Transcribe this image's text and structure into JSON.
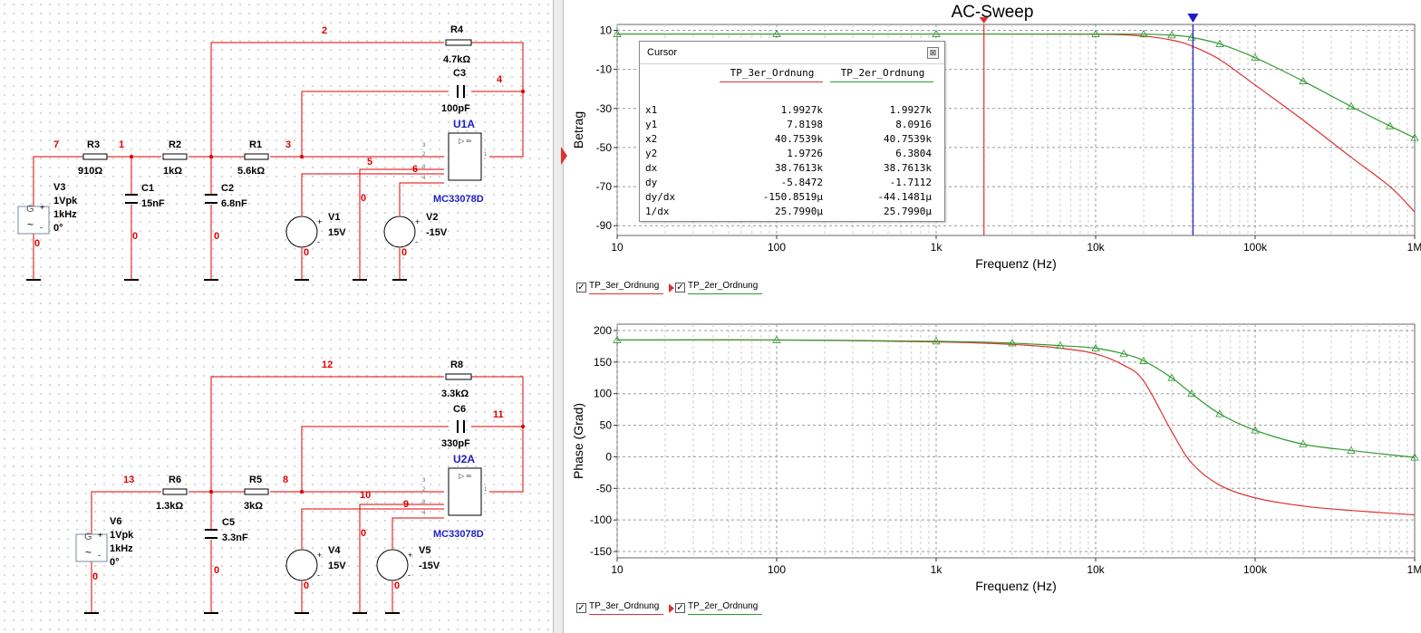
{
  "colors": {
    "red": "#e03030",
    "green": "#2e9a2e",
    "blue": "#1c1cc8",
    "wire": "#e00000",
    "part": "#000000"
  },
  "schematic": {
    "top": {
      "nodes": [
        "7",
        "1",
        "2",
        "3",
        "4",
        "5",
        "6",
        "0",
        "0",
        "0",
        "0",
        "0",
        "0"
      ],
      "R4": {
        "name": "R4",
        "value": "4.7kΩ"
      },
      "C3": {
        "name": "C3",
        "value": "100pF"
      },
      "R3": {
        "name": "R3",
        "value": "910Ω"
      },
      "R2": {
        "name": "R2",
        "value": "1kΩ"
      },
      "R1": {
        "name": "R1",
        "value": "5.6kΩ"
      },
      "C1": {
        "name": "C1",
        "value": "15nF"
      },
      "C2": {
        "name": "C2",
        "value": "6.8nF"
      },
      "V3": {
        "name": "V3",
        "amp": "1Vpk",
        "freq": "1kHz",
        "phase": "0°"
      },
      "V1": {
        "name": "V1",
        "value": "15V"
      },
      "V2": {
        "name": "V2",
        "value": "-15V"
      },
      "U": {
        "name": "U1A",
        "part": "MC33078D"
      }
    },
    "bottom": {
      "nodes": [
        "13",
        "12",
        "8",
        "11",
        "10",
        "9",
        "0",
        "0",
        "0",
        "0",
        "0"
      ],
      "R8": {
        "name": "R8",
        "value": "3.3kΩ"
      },
      "C6": {
        "name": "C6",
        "value": "330pF"
      },
      "R6": {
        "name": "R6",
        "value": "1.3kΩ"
      },
      "R5": {
        "name": "R5",
        "value": "3kΩ"
      },
      "C5": {
        "name": "C5",
        "value": "3.3nF"
      },
      "V6": {
        "name": "V6",
        "amp": "1Vpk",
        "freq": "1kHz",
        "phase": "0°"
      },
      "V4": {
        "name": "V4",
        "value": "15V"
      },
      "V5": {
        "name": "V5",
        "value": "-15V"
      },
      "U": {
        "name": "U2A",
        "part": "MC33078D"
      }
    }
  },
  "grapher": {
    "title": "AC-Sweep",
    "cursor_window": {
      "title": "Cursor",
      "close": "⊠",
      "headers": [
        "TP_3er_Ordnung",
        "TP_2er_Ordnung"
      ],
      "rows": [
        {
          "label": "x1",
          "c1": "1.9927k",
          "c2": "1.9927k"
        },
        {
          "label": "y1",
          "c1": "7.8198",
          "c2": "8.0916"
        },
        {
          "label": "x2",
          "c1": "40.7539k",
          "c2": "40.7539k"
        },
        {
          "label": "y2",
          "c1": "1.9726",
          "c2": "6.3804"
        },
        {
          "label": "dx",
          "c1": "38.7613k",
          "c2": "38.7613k"
        },
        {
          "label": "dy",
          "c1": "-5.8472",
          "c2": "-1.7112"
        },
        {
          "label": "dy/dx",
          "c1": "-150.8519µ",
          "c2": "-44.1481µ"
        },
        {
          "label": "1/dx",
          "c1": "25.7990µ",
          "c2": "25.7990µ"
        }
      ]
    },
    "legend": {
      "series1": "TP_3er_Ordnung",
      "series2": "TP_2er_Ordnung",
      "check": "✓"
    }
  },
  "chart_data": [
    {
      "type": "line",
      "title": "AC-Sweep",
      "xlabel": "Frequenz (Hz)",
      "ylabel": "Betrag",
      "x_scale": "log",
      "xlim": [
        10,
        1000000
      ],
      "ylim": [
        -95,
        13
      ],
      "x_ticks": [
        10,
        100,
        1000,
        10000,
        100000,
        1000000
      ],
      "x_tick_labels": [
        "10",
        "100",
        "1k",
        "10k",
        "100k",
        "1M"
      ],
      "y_ticks": [
        10,
        -10,
        -30,
        -50,
        -70,
        -90
      ],
      "y_tick_labels": [
        "10",
        "-10",
        "-30",
        "-50",
        "-70",
        "-90"
      ],
      "grid": true,
      "cursors": {
        "x1": 1992.7,
        "x2": 40753.9
      },
      "x": [
        10,
        100,
        1000,
        10000,
        20000,
        30000,
        40000,
        60000,
        100000,
        200000,
        400000,
        700000,
        1000000
      ],
      "series": [
        {
          "name": "TP_3er_Ordnung",
          "color": "#e03030",
          "values": [
            8.1,
            8.1,
            8.1,
            8.0,
            7.0,
            5.0,
            2.0,
            -5.0,
            -18.0,
            -36.0,
            -55.0,
            -70.0,
            -83.0
          ]
        },
        {
          "name": "TP_2er_Ordnung",
          "color": "#2e9a2e",
          "values": [
            8.1,
            8.1,
            8.1,
            8.1,
            8.0,
            7.5,
            6.4,
            3.0,
            -4.0,
            -16.0,
            -29.0,
            -39.0,
            -45.0
          ]
        }
      ]
    },
    {
      "type": "line",
      "xlabel": "Frequenz (Hz)",
      "ylabel": "Phase (Grad)",
      "x_scale": "log",
      "xlim": [
        10,
        1000000
      ],
      "ylim": [
        -160,
        210
      ],
      "x_ticks": [
        10,
        100,
        1000,
        10000,
        100000,
        1000000
      ],
      "x_tick_labels": [
        "10",
        "100",
        "1k",
        "10k",
        "100k",
        "1M"
      ],
      "y_ticks": [
        200,
        150,
        100,
        50,
        0,
        -50,
        -100,
        -150
      ],
      "y_tick_labels": [
        "200",
        "150",
        "100",
        "50",
        "0",
        "-50",
        "-100",
        "-150"
      ],
      "grid": true,
      "x": [
        10,
        100,
        1000,
        3000,
        6000,
        10000,
        15000,
        20000,
        30000,
        40000,
        60000,
        100000,
        200000,
        400000,
        1000000
      ],
      "series": [
        {
          "name": "TP_3er_Ordnung",
          "color": "#e03030",
          "values": [
            185,
            185,
            182,
            178,
            172,
            163,
            145,
            120,
            40,
            -10,
            -45,
            -65,
            -78,
            -85,
            -92
          ]
        },
        {
          "name": "TP_2er_Ordnung",
          "color": "#2e9a2e",
          "values": [
            185,
            185,
            183,
            180,
            176,
            172,
            163,
            152,
            125,
            100,
            68,
            42,
            20,
            10,
            -1
          ]
        }
      ]
    }
  ]
}
